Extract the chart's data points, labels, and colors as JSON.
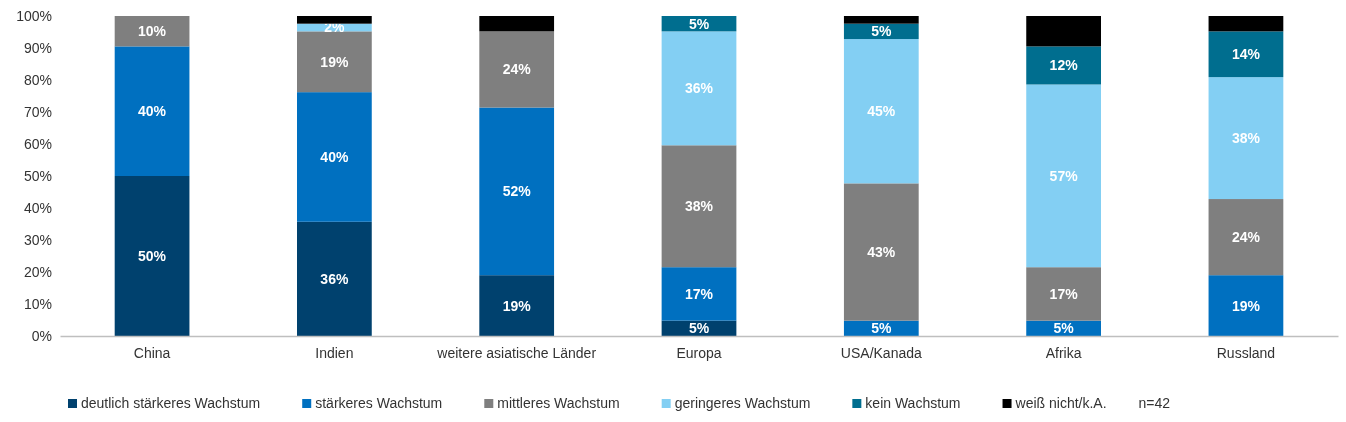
{
  "chart_data": {
    "type": "bar",
    "stacked": true,
    "categories": [
      "China",
      "Indien",
      "weitere asiatische Länder",
      "Europa",
      "USA/Kanada",
      "Afrika",
      "Russland"
    ],
    "series": [
      {
        "name": "deutlich stärkeres Wachstum",
        "color": "#00416e",
        "values": [
          50,
          35.7,
          19.0,
          4.8,
          0,
          0,
          0
        ],
        "value_labels": [
          "50%",
          "36%",
          "19%",
          "5%",
          null,
          null,
          null
        ]
      },
      {
        "name": "stärkeres Wachstum",
        "color": "#0070c0",
        "values": [
          40.5,
          40.5,
          52.4,
          16.7,
          4.8,
          4.8,
          19.0
        ],
        "value_labels": [
          "40%",
          "40%",
          "52%",
          "17%",
          "5%",
          "5%",
          "19%"
        ]
      },
      {
        "name": "mittleres Wachstum",
        "color": "#7f7f7f",
        "values": [
          9.5,
          19.0,
          23.8,
          38.1,
          42.9,
          16.7,
          23.8
        ],
        "value_labels": [
          "10%",
          "19%",
          "24%",
          "38%",
          "43%",
          "17%",
          "24%"
        ]
      },
      {
        "name": "geringeres Wachstum",
        "color": "#83cff3",
        "values": [
          0,
          2.4,
          0,
          35.6,
          45.1,
          57.1,
          38.1
        ],
        "value_labels": [
          null,
          "2%",
          null,
          "36%",
          "45%",
          "57%",
          "38%"
        ]
      },
      {
        "name": "kein Wachstum",
        "color": "#006e8f",
        "values": [
          0,
          0,
          0,
          4.8,
          4.8,
          11.9,
          14.3
        ],
        "value_labels": [
          null,
          null,
          null,
          "5%",
          "5%",
          "12%",
          "14%"
        ]
      },
      {
        "name": "weiß nicht/k.A.",
        "color": "#000000",
        "values": [
          0,
          2.4,
          4.8,
          0,
          2.4,
          9.5,
          4.8
        ],
        "value_labels": [
          null,
          null,
          null,
          null,
          null,
          null,
          null
        ]
      }
    ],
    "ylim": [
      0,
      100
    ],
    "yticks": [
      {
        "value": 0,
        "label": "0%"
      },
      {
        "value": 10,
        "label": "10%"
      },
      {
        "value": 20,
        "label": "20%"
      },
      {
        "value": 30,
        "label": "30%"
      },
      {
        "value": 40,
        "label": "40%"
      },
      {
        "value": 50,
        "label": "50%"
      },
      {
        "value": 60,
        "label": "60%"
      },
      {
        "value": 70,
        "label": "70%"
      },
      {
        "value": 80,
        "label": "80%"
      },
      {
        "value": 90,
        "label": "90%"
      },
      {
        "value": 100,
        "label": "100%"
      }
    ],
    "legend": "bottom",
    "annotations": [
      "n=42"
    ]
  }
}
